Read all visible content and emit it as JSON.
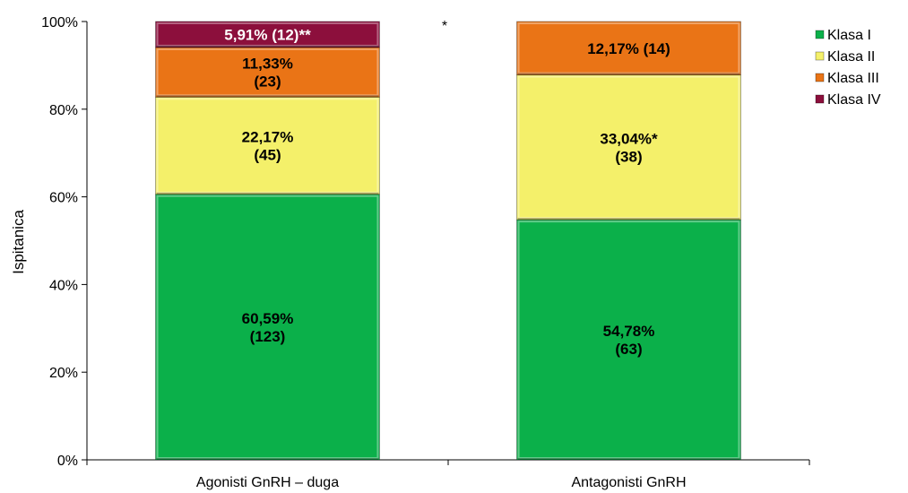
{
  "chart_data": {
    "type": "bar",
    "stacked": true,
    "percent_stacked": true,
    "title": "",
    "xlabel": "",
    "ylabel": "Ispitanica",
    "ylim": [
      0,
      100
    ],
    "yticks": [
      "0%",
      "20%",
      "40%",
      "60%",
      "80%",
      "100%"
    ],
    "categories": [
      "Agonisti GnRH – duga",
      "Antagonisti GnRH"
    ],
    "series": [
      {
        "name": "Klasa I",
        "color": "#0bb04a",
        "values": [
          60.59,
          54.78
        ],
        "labels": [
          [
            "60,59%",
            "(123)"
          ],
          [
            "54,78%",
            "(63)"
          ]
        ]
      },
      {
        "name": "Klasa II",
        "color": "#f4f06a",
        "values": [
          22.17,
          33.04
        ],
        "labels": [
          [
            "22,17%",
            "(45)"
          ],
          [
            "33,04%*",
            "(38)"
          ]
        ]
      },
      {
        "name": "Klasa III",
        "color": "#ea7416",
        "values": [
          11.33,
          12.17
        ],
        "labels": [
          [
            "11,33%",
            "(23)"
          ],
          [
            "12,17% (14)"
          ]
        ]
      },
      {
        "name": "Klasa IV",
        "color": "#8c0f3c",
        "values": [
          5.91,
          0
        ],
        "labels": [
          [
            "5,91% (12)**"
          ],
          []
        ]
      }
    ],
    "annotations": [
      "*"
    ],
    "legend_position": "right",
    "grid": false
  }
}
